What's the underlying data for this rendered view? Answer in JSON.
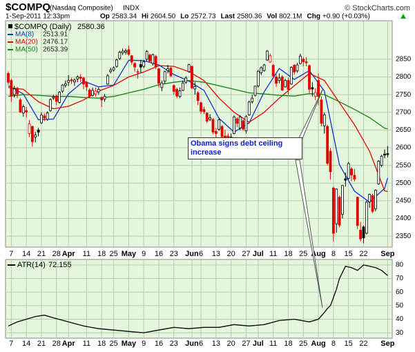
{
  "chart_data": [
    {
      "type": "candlestick",
      "title": "$COMPQ",
      "subtitle": "(Nasdaq Composite)",
      "exchange": "INDX",
      "source": "© StockCharts.com",
      "timestamp": "1-Sep-2011 12:33pm",
      "quote": [
        {
          "label": "Op",
          "value": "2583.34"
        },
        {
          "label": "Hi",
          "value": "2604.50"
        },
        {
          "label": "Lo",
          "value": "2572.73"
        },
        {
          "label": "Last",
          "value": "2580.36"
        },
        {
          "label": "Vol",
          "value": "802.1M"
        },
        {
          "label": "Chg",
          "value": "+0.90 (+0.03%)"
        }
      ],
      "legend_label": "$COMPQ (Daily)",
      "annotation": "Obama signs debt ceiling increase",
      "up_color": "#000000",
      "down_color": "#e00000",
      "background": "#e4f7dc",
      "grid": true,
      "ylim": [
        2319,
        2959
      ],
      "yticks": [
        2350,
        2400,
        2450,
        2500,
        2550,
        2600,
        2650,
        2700,
        2750,
        2800,
        2850
      ],
      "xticks": [
        {
          "value": 1,
          "label": "7"
        },
        {
          "value": 6,
          "label": "14"
        },
        {
          "value": 11,
          "label": "21"
        },
        {
          "value": 16,
          "label": "28"
        },
        {
          "value": 20,
          "label": "Apr"
        },
        {
          "value": 26,
          "label": "11"
        },
        {
          "value": 31,
          "label": "18"
        },
        {
          "value": 35,
          "label": "25"
        },
        {
          "value": 40,
          "label": "May"
        },
        {
          "value": 45,
          "label": "9"
        },
        {
          "value": 50,
          "label": "16"
        },
        {
          "value": 55,
          "label": "23"
        },
        {
          "value": 61,
          "label": "Jun"
        },
        {
          "value": 64,
          "label": "6"
        },
        {
          "value": 69,
          "label": "13"
        },
        {
          "value": 74,
          "label": "20"
        },
        {
          "value": 79,
          "label": "27"
        },
        {
          "value": 83,
          "label": "Jul"
        },
        {
          "value": 88,
          "label": "11"
        },
        {
          "value": 93,
          "label": "18"
        },
        {
          "value": 98,
          "label": "25"
        },
        {
          "value": 103,
          "label": "Aug"
        },
        {
          "value": 108,
          "label": "8"
        },
        {
          "value": 113,
          "label": "15"
        },
        {
          "value": 118,
          "label": "22"
        },
        {
          "value": 126,
          "label": "Sep"
        }
      ],
      "open": [
        2810,
        2790,
        2750,
        2768,
        2735,
        2698,
        2705,
        2640,
        2660,
        2630,
        2650,
        2670,
        2690,
        2680,
        2705,
        2740,
        2746,
        2728,
        2760,
        2776,
        2785,
        2792,
        2786,
        2794,
        2800,
        2797,
        2785,
        2763,
        2748,
        2752,
        2758,
        2742,
        2737,
        2780,
        2815,
        2820,
        2830,
        2852,
        2868,
        2870,
        2877,
        2860,
        2838,
        2815,
        2835,
        2830,
        2850,
        2862,
        2838,
        2858,
        2823,
        2770,
        2788,
        2818,
        2825,
        2776,
        2765,
        2745,
        2762,
        2785,
        2815,
        2830,
        2766,
        2755,
        2727,
        2708,
        2698,
        2680,
        2680,
        2646,
        2652,
        2660,
        2633,
        2633,
        2605,
        2640,
        2682,
        2656,
        2676,
        2648,
        2693,
        2730,
        2748,
        2775,
        2812,
        2818,
        2848,
        2842,
        2833,
        2800,
        2790,
        2800,
        2772,
        2790,
        2780,
        2833,
        2817,
        2838,
        2850,
        2843,
        2832,
        2770,
        2745,
        2790,
        2735,
        2662,
        2660,
        2590,
        2486,
        2385,
        2460,
        2412,
        2512,
        2513,
        2540,
        2522,
        2460,
        2367,
        2376,
        2358,
        2447,
        2465,
        2427,
        2498,
        2550,
        2582,
        2583.34
      ],
      "high": [
        2815,
        2795,
        2775,
        2772,
        2740,
        2722,
        2715,
        2678,
        2662,
        2645,
        2656,
        2700,
        2697,
        2703,
        2740,
        2750,
        2750,
        2760,
        2780,
        2790,
        2805,
        2798,
        2796,
        2805,
        2808,
        2800,
        2788,
        2768,
        2770,
        2770,
        2770,
        2745,
        2752,
        2808,
        2826,
        2830,
        2852,
        2874,
        2880,
        2880,
        2888,
        2862,
        2842,
        2822,
        2848,
        2848,
        2876,
        2866,
        2866,
        2862,
        2826,
        2790,
        2818,
        2834,
        2828,
        2778,
        2770,
        2770,
        2790,
        2802,
        2837,
        2832,
        2785,
        2760,
        2730,
        2716,
        2700,
        2695,
        2684,
        2656,
        2685,
        2664,
        2650,
        2640,
        2640,
        2692,
        2686,
        2692,
        2680,
        2692,
        2733,
        2750,
        2775,
        2820,
        2830,
        2837,
        2876,
        2866,
        2836,
        2808,
        2810,
        2805,
        2795,
        2798,
        2830,
        2836,
        2840,
        2866,
        2856,
        2856,
        2835,
        2785,
        2768,
        2810,
        2745,
        2700,
        2665,
        2598,
        2490,
        2485,
        2465,
        2495,
        2530,
        2560,
        2545,
        2540,
        2462,
        2390,
        2380,
        2450,
        2470,
        2470,
        2482,
        2565,
        2580,
        2595,
        2604.5
      ],
      "low": [
        2778,
        2730,
        2742,
        2740,
        2698,
        2688,
        2685,
        2630,
        2603,
        2615,
        2632,
        2667,
        2675,
        2676,
        2702,
        2735,
        2720,
        2725,
        2755,
        2770,
        2775,
        2780,
        2775,
        2785,
        2785,
        2765,
        2760,
        2740,
        2745,
        2745,
        2750,
        2715,
        2730,
        2778,
        2810,
        2815,
        2826,
        2848,
        2862,
        2863,
        2860,
        2835,
        2815,
        2795,
        2812,
        2825,
        2845,
        2840,
        2832,
        2822,
        2770,
        2760,
        2782,
        2810,
        2800,
        2750,
        2740,
        2740,
        2760,
        2780,
        2812,
        2765,
        2750,
        2720,
        2695,
        2695,
        2670,
        2675,
        2638,
        2625,
        2648,
        2628,
        2620,
        2605,
        2600,
        2638,
        2658,
        2650,
        2648,
        2640,
        2690,
        2725,
        2745,
        2770,
        2805,
        2815,
        2845,
        2840,
        2795,
        2772,
        2782,
        2760,
        2770,
        2750,
        2778,
        2806,
        2812,
        2835,
        2830,
        2830,
        2755,
        2745,
        2735,
        2720,
        2660,
        2640,
        2550,
        2510,
        2335,
        2360,
        2375,
        2400,
        2490,
        2510,
        2505,
        2505,
        2370,
        2335,
        2330,
        2355,
        2430,
        2415,
        2420,
        2495,
        2545,
        2570,
        2572.73
      ],
      "close": [
        2785,
        2746,
        2766,
        2752,
        2701,
        2716,
        2701,
        2667,
        2617,
        2636,
        2644,
        2692,
        2684,
        2698,
        2736,
        2743,
        2731,
        2757,
        2777,
        2781,
        2790,
        2789,
        2791,
        2800,
        2796,
        2780,
        2772,
        2745,
        2762,
        2760,
        2765,
        2735,
        2745,
        2803,
        2820,
        2826,
        2848,
        2870,
        2873,
        2874,
        2864,
        2842,
        2828,
        2815,
        2828,
        2843,
        2872,
        2845,
        2863,
        2828,
        2782,
        2783,
        2815,
        2823,
        2803,
        2759,
        2746,
        2761,
        2783,
        2797,
        2835,
        2769,
        2773,
        2733,
        2703,
        2702,
        2675,
        2685,
        2644,
        2640,
        2679,
        2631,
        2624,
        2616,
        2630,
        2687,
        2669,
        2687,
        2653,
        2688,
        2729,
        2740,
        2774,
        2816,
        2826,
        2834,
        2873,
        2860,
        2803,
        2782,
        2797,
        2763,
        2790,
        2765,
        2827,
        2814,
        2834,
        2859,
        2843,
        2840,
        2765,
        2766,
        2756,
        2745,
        2669,
        2693,
        2556,
        2532,
        2358,
        2483,
        2381,
        2493,
        2508,
        2555,
        2523,
        2511,
        2380,
        2342,
        2345,
        2446,
        2468,
        2420,
        2480,
        2562,
        2576,
        2579,
        2580.36
      ],
      "overlays": [
        {
          "name": "MA(8)",
          "color": "#1030c8",
          "last": 2513.91,
          "x": [
            0,
            5,
            10,
            15,
            20,
            25,
            30,
            35,
            40,
            45,
            50,
            55,
            60,
            65,
            70,
            75,
            80,
            85,
            90,
            95,
            100,
            105,
            110,
            115,
            120,
            125,
            126
          ],
          "values": [
            2775,
            2752,
            2679,
            2681,
            2752,
            2788,
            2772,
            2777,
            2847,
            2846,
            2834,
            2807,
            2788,
            2762,
            2683,
            2644,
            2670,
            2758,
            2824,
            2793,
            2818,
            2760,
            2552,
            2477,
            2446,
            2485,
            2513.91
          ]
        },
        {
          "name": "MA(20)",
          "color": "#e00000",
          "last": 2476.17,
          "x": [
            0,
            5,
            10,
            15,
            20,
            25,
            30,
            35,
            40,
            45,
            50,
            55,
            60,
            65,
            70,
            75,
            80,
            85,
            90,
            95,
            100,
            105,
            110,
            115,
            120,
            125,
            126
          ],
          "values": [
            2770,
            2765,
            2730,
            2710,
            2717,
            2735,
            2760,
            2776,
            2800,
            2814,
            2832,
            2830,
            2815,
            2790,
            2740,
            2700,
            2672,
            2700,
            2740,
            2775,
            2810,
            2790,
            2727,
            2665,
            2590,
            2478,
            2476.17
          ]
        },
        {
          "name": "MA(50)",
          "color": "#108010",
          "last": 2653.39,
          "x": [
            0,
            5,
            10,
            15,
            20,
            25,
            30,
            35,
            40,
            45,
            50,
            55,
            60,
            65,
            70,
            75,
            80,
            85,
            90,
            95,
            100,
            105,
            110,
            115,
            120,
            125,
            126
          ],
          "values": [
            2745,
            2750,
            2748,
            2745,
            2745,
            2742,
            2740,
            2745,
            2755,
            2765,
            2778,
            2785,
            2790,
            2785,
            2775,
            2765,
            2755,
            2752,
            2748,
            2746,
            2753,
            2750,
            2730,
            2708,
            2685,
            2655,
            2653.39
          ]
        }
      ]
    },
    {
      "type": "line",
      "ylim": [
        26,
        84
      ],
      "yticks": [
        30,
        40,
        50,
        60,
        70,
        80
      ],
      "grid": true,
      "xticks": [
        {
          "value": 1,
          "label": "7"
        },
        {
          "value": 6,
          "label": "14"
        },
        {
          "value": 11,
          "label": "21"
        },
        {
          "value": 16,
          "label": "28"
        },
        {
          "value": 20,
          "label": "Apr"
        },
        {
          "value": 26,
          "label": "11"
        },
        {
          "value": 31,
          "label": "18"
        },
        {
          "value": 35,
          "label": "25"
        },
        {
          "value": 40,
          "label": "May"
        },
        {
          "value": 45,
          "label": "9"
        },
        {
          "value": 50,
          "label": "16"
        },
        {
          "value": 55,
          "label": "23"
        },
        {
          "value": 61,
          "label": "Jun"
        },
        {
          "value": 64,
          "label": "6"
        },
        {
          "value": 69,
          "label": "13"
        },
        {
          "value": 74,
          "label": "20"
        },
        {
          "value": 79,
          "label": "27"
        },
        {
          "value": 83,
          "label": "Jul"
        },
        {
          "value": 88,
          "label": "11"
        },
        {
          "value": 93,
          "label": "18"
        },
        {
          "value": 98,
          "label": "25"
        },
        {
          "value": 103,
          "label": "Aug"
        },
        {
          "value": 108,
          "label": "8"
        },
        {
          "value": 113,
          "label": "15"
        },
        {
          "value": 118,
          "label": "22"
        },
        {
          "value": 126,
          "label": "Sep"
        }
      ],
      "series": [
        {
          "name": "ATR(14)",
          "color": "#000000",
          "last": 72.155,
          "x": [
            0,
            3,
            6,
            9,
            12,
            15,
            20,
            25,
            30,
            35,
            40,
            45,
            50,
            55,
            60,
            65,
            70,
            75,
            80,
            85,
            90,
            95,
            100,
            103,
            105,
            106,
            107,
            108,
            109,
            110,
            112,
            114,
            116,
            118,
            120,
            122,
            124,
            126
          ],
          "values": [
            35,
            38,
            40,
            42,
            43,
            41,
            38,
            35,
            33,
            32,
            31,
            30,
            32,
            34,
            33,
            34,
            34,
            36,
            35,
            36,
            39,
            40,
            38,
            40,
            45,
            48,
            50,
            56,
            62,
            70,
            79,
            78,
            76,
            80,
            79,
            78,
            76,
            72.155
          ]
        }
      ]
    }
  ]
}
